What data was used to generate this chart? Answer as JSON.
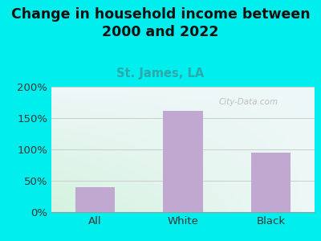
{
  "title": "Change in household income between\n2000 and 2022",
  "subtitle": "St. James, LA",
  "categories": [
    "All",
    "White",
    "Black"
  ],
  "values": [
    40,
    162,
    95
  ],
  "bar_color": "#c0a8d0",
  "title_fontsize": 12.5,
  "subtitle_fontsize": 10.5,
  "subtitle_color": "#2aaaaa",
  "tick_label_fontsize": 9.5,
  "ylim": [
    0,
    200
  ],
  "yticks": [
    0,
    50,
    100,
    150,
    200
  ],
  "background_outer": "#00eeee",
  "watermark": "City-Data.com",
  "bar_width": 0.45,
  "grad_topleft": [
    0.93,
    0.97,
    0.97
  ],
  "grad_topright": [
    0.93,
    0.97,
    0.97
  ],
  "grad_bottomleft": [
    0.83,
    0.95,
    0.87
  ],
  "grad_bottomright": [
    0.93,
    0.97,
    0.97
  ]
}
